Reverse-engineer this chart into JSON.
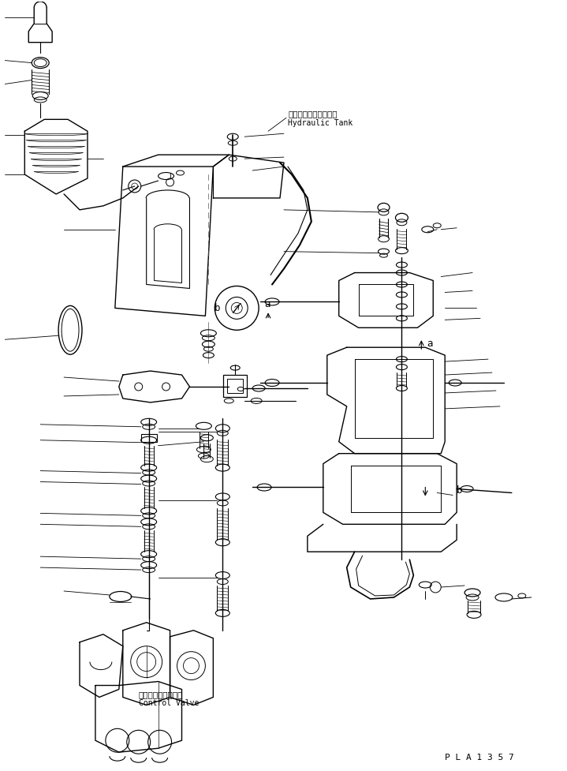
{
  "bg_color": "#ffffff",
  "line_color": "#000000",
  "fig_width": 7.19,
  "fig_height": 9.77,
  "dpi": 100,
  "label_hydraulic_jp": "ハイドロリックタンク",
  "label_hydraulic_en": "Hydraulic Tank",
  "label_control_jp": "コントロールバルブ",
  "label_control_en": "Control Valve",
  "label_pla": "P L A 1 3 5 7",
  "label_a": "a",
  "label_b": "b"
}
